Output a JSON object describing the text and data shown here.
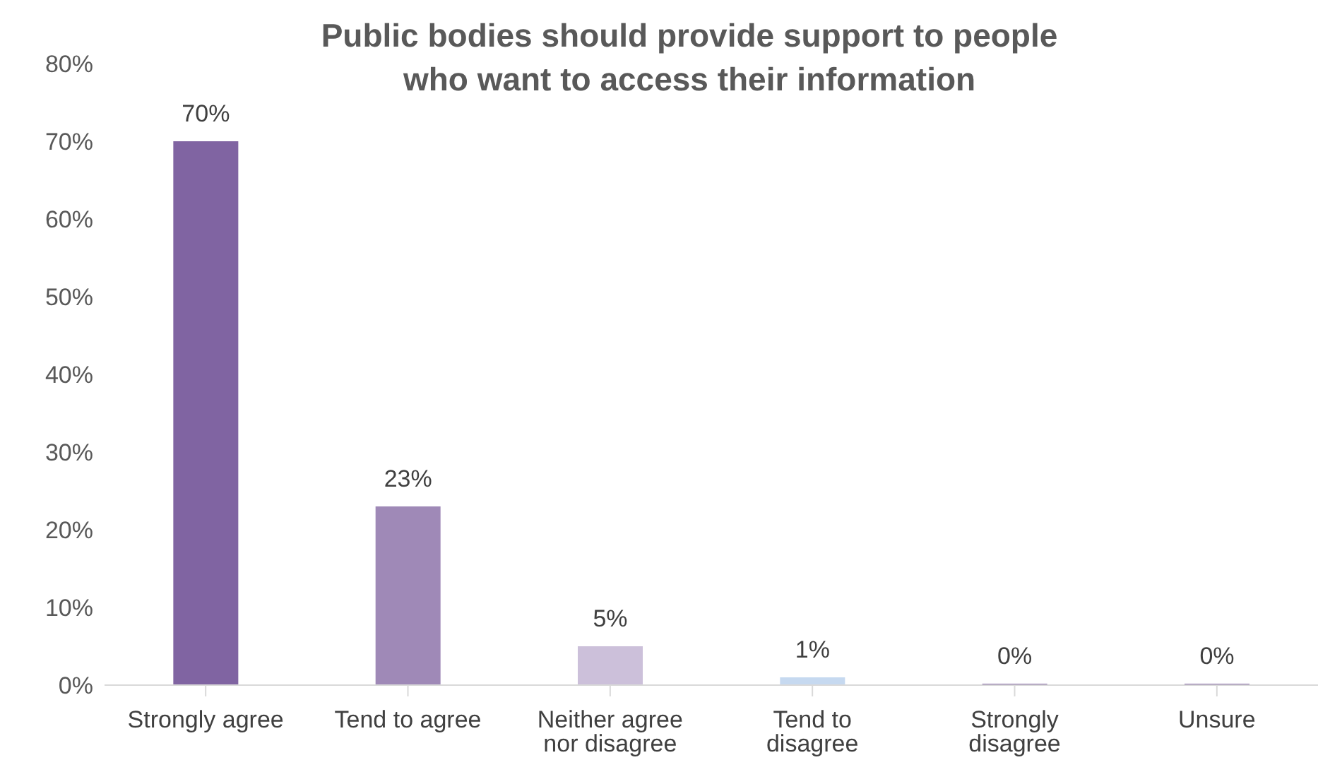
{
  "chart_data": {
    "type": "bar",
    "title": "Public bodies should provide support to people who want to access their information",
    "categories": [
      "Strongly agree",
      "Tend to agree",
      "Neither agree nor disagree",
      "Tend to disagree",
      "Strongly disagree",
      "Unsure"
    ],
    "values": [
      70,
      23,
      5,
      1,
      0,
      0
    ],
    "colors": [
      "#8064a2",
      "#9f89b7",
      "#ccc0da",
      "#c6d9f0",
      "#8064a2",
      "#8064a2"
    ],
    "value_labels": [
      "70%",
      "23%",
      "5%",
      "1%",
      "0%",
      "0%"
    ],
    "ylim": [
      0,
      80
    ],
    "yticks": [
      {
        "value": 0,
        "label": "0%"
      },
      {
        "value": 10,
        "label": "10%"
      },
      {
        "value": 20,
        "label": "20%"
      },
      {
        "value": 30,
        "label": "30%"
      },
      {
        "value": 40,
        "label": "40%"
      },
      {
        "value": 50,
        "label": "50%"
      },
      {
        "value": 60,
        "label": "60%"
      },
      {
        "value": 70,
        "label": "70%"
      },
      {
        "value": 80,
        "label": "80%"
      }
    ],
    "grid": false,
    "legend": false
  }
}
